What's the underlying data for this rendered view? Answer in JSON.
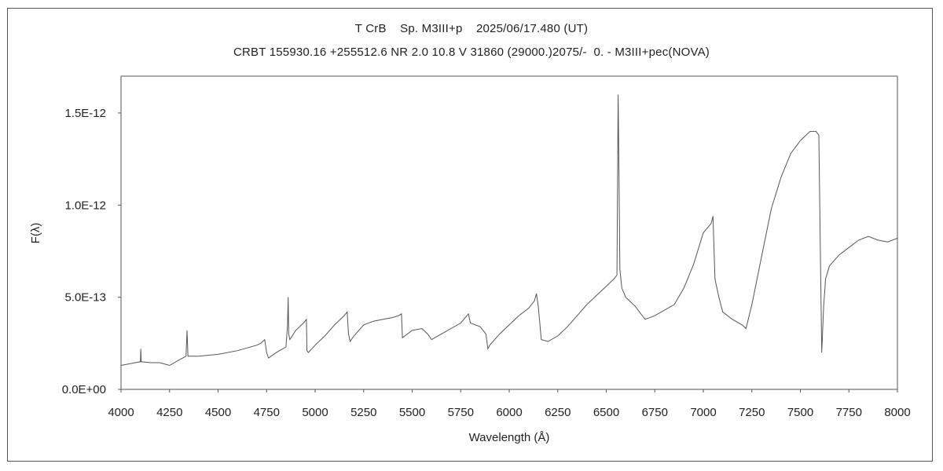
{
  "chart_data": {
    "type": "line",
    "title": "T CrB    Sp. M3III+p    2025/06/17.480 (UT)",
    "subtitle": "CRBT 155930.16 +255512.6 NR 2.0 10.8 V 31860 (29000.)2075/-  0. - M3III+pec(NOVA)",
    "xlabel": "Wavelength (Å)",
    "ylabel": "F(λ)",
    "xlim": [
      4000,
      8000
    ],
    "ylim": [
      0,
      1.7e-12
    ],
    "xticks": [
      4000,
      4250,
      4500,
      4750,
      5000,
      5250,
      5500,
      5750,
      6000,
      6250,
      6500,
      6750,
      7000,
      7250,
      7500,
      7750,
      8000
    ],
    "xtick_labels": [
      "4000",
      "4250",
      "4500",
      "4750",
      "5000",
      "5250",
      "5500",
      "5750",
      "6000",
      "6250",
      "6500",
      "6750",
      "7000",
      "7250",
      "7500",
      "7750",
      "8000"
    ],
    "yticks": [
      0,
      5e-13,
      1e-12,
      1.5e-12
    ],
    "ytick_labels": [
      "0.0E+00",
      "5.0E-13",
      "1.0E-12",
      "1.5E-12"
    ],
    "grid": false,
    "series": [
      {
        "x": [
          4000,
          4050,
          4100,
          4102,
          4104,
          4150,
          4200,
          4250,
          4300,
          4335,
          4340,
          4345,
          4400,
          4500,
          4600,
          4700,
          4720,
          4740,
          4750,
          4760,
          4800,
          4850,
          4858,
          4861,
          4864,
          4870,
          4900,
          4940,
          4955,
          4958,
          4965,
          5000,
          5050,
          5100,
          5150,
          5165,
          5172,
          5180,
          5200,
          5250,
          5300,
          5350,
          5400,
          5430,
          5445,
          5450,
          5500,
          5550,
          5580,
          5600,
          5650,
          5700,
          5750,
          5790,
          5800,
          5850,
          5880,
          5890,
          5900,
          5950,
          6000,
          6050,
          6100,
          6130,
          6140,
          6150,
          6165,
          6200,
          6250,
          6300,
          6350,
          6400,
          6450,
          6500,
          6520,
          6540,
          6555,
          6561,
          6565,
          6570,
          6580,
          6600,
          6650,
          6700,
          6750,
          6800,
          6850,
          6900,
          6950,
          7000,
          7040,
          7050,
          7060,
          7080,
          7100,
          7150,
          7200,
          7220,
          7250,
          7300,
          7350,
          7400,
          7450,
          7500,
          7550,
          7580,
          7595,
          7605,
          7610,
          7620,
          7630,
          7650,
          7700,
          7750,
          7800,
          7850,
          7900,
          7950,
          8000
        ],
        "values": [
          1.3e-13,
          1.4e-13,
          1.5e-13,
          2.2e-13,
          1.5e-13,
          1.45e-13,
          1.45e-13,
          1.3e-13,
          1.6e-13,
          1.8e-13,
          3.2e-13,
          1.8e-13,
          1.8e-13,
          1.9e-13,
          2.1e-13,
          2.4e-13,
          2.5e-13,
          2.7e-13,
          2e-13,
          1.7e-13,
          2e-13,
          2.3e-13,
          3.5e-13,
          5e-13,
          3e-13,
          2.7e-13,
          3.2e-13,
          3.6e-13,
          3.8e-13,
          2.1e-13,
          2e-13,
          2.4e-13,
          2.9e-13,
          3.5e-13,
          4e-13,
          4.2e-13,
          3e-13,
          2.6e-13,
          2.9e-13,
          3.5e-13,
          3.7e-13,
          3.8e-13,
          3.9e-13,
          4e-13,
          4.1e-13,
          2.8e-13,
          3.2e-13,
          3.3e-13,
          3e-13,
          2.7e-13,
          3e-13,
          3.3e-13,
          3.6e-13,
          4.1e-13,
          3.6e-13,
          3.4e-13,
          3e-13,
          2.2e-13,
          2.4e-13,
          3e-13,
          3.5e-13,
          4e-13,
          4.4e-13,
          4.8e-13,
          5.2e-13,
          4.5e-13,
          2.7e-13,
          2.6e-13,
          2.9e-13,
          3.4e-13,
          4e-13,
          4.6e-13,
          5.1e-13,
          5.6e-13,
          5.8e-13,
          6e-13,
          6.2e-13,
          1.6e-12,
          1.2e-12,
          6.5e-13,
          5.5e-13,
          5e-13,
          4.5e-13,
          3.8e-13,
          4e-13,
          4.3e-13,
          4.6e-13,
          5.5e-13,
          6.8e-13,
          8.5e-13,
          9e-13,
          9.4e-13,
          6e-13,
          5e-13,
          4.2e-13,
          3.8e-13,
          3.5e-13,
          3.3e-13,
          4.6e-13,
          7.2e-13,
          9.8e-13,
          1.15e-12,
          1.28e-12,
          1.35e-12,
          1.4e-12,
          1.4e-12,
          1.38e-12,
          6e-13,
          2e-13,
          4.5e-13,
          6e-13,
          6.7e-13,
          7.3e-13,
          7.7e-13,
          8.1e-13,
          8.3e-13,
          8.1e-13,
          8e-13,
          8.2e-13
        ]
      }
    ]
  }
}
